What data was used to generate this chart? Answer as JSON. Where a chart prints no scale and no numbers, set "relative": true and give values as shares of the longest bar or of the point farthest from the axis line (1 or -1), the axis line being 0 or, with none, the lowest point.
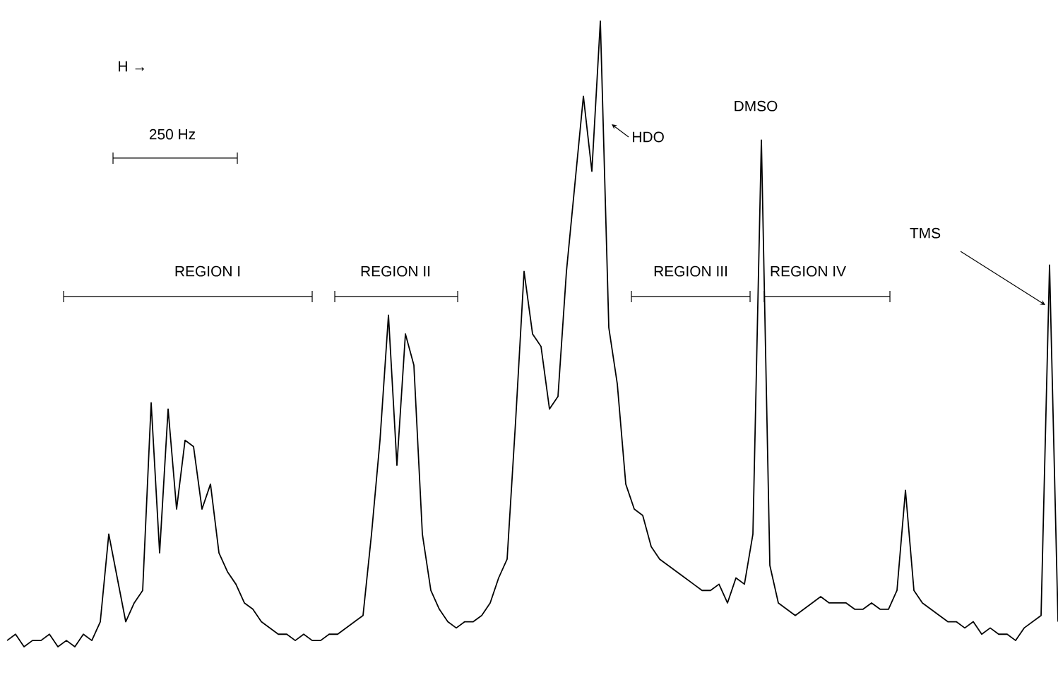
{
  "chart_data": {
    "type": "line",
    "relative": true,
    "color": "#000000",
    "categories": [
      null,
      null,
      null,
      null,
      null,
      null,
      null,
      null,
      null,
      null,
      null,
      null,
      null,
      null,
      null,
      null,
      null,
      null,
      null,
      null,
      null,
      null,
      null,
      null,
      null,
      null,
      null,
      null,
      null,
      null,
      null,
      null,
      null,
      null,
      null,
      null,
      null,
      null,
      null,
      null,
      null,
      null,
      null,
      null,
      null,
      null,
      null,
      null,
      null,
      null,
      null,
      null,
      null,
      null,
      null,
      null,
      null,
      null,
      null,
      null,
      null,
      null,
      null,
      null,
      null,
      null,
      null,
      null,
      null,
      null,
      null,
      null,
      null,
      null,
      null,
      null,
      null,
      null,
      null,
      null,
      null,
      null,
      null,
      null,
      null,
      null,
      null,
      null,
      null,
      null,
      null,
      null,
      null,
      null,
      null,
      null,
      null,
      null,
      null,
      null,
      null,
      null,
      null,
      null,
      null,
      null,
      null,
      null,
      null,
      null,
      null,
      null,
      null,
      null,
      null,
      null,
      null,
      null,
      null,
      null,
      null,
      null,
      null,
      null,
      null
    ],
    "values": [
      0.01,
      0.02,
      0,
      0.01,
      0.01,
      0.02,
      0,
      0.01,
      0,
      0.02,
      0.01,
      0.04,
      0.18,
      0.11,
      0.04,
      0.07,
      0.09,
      0.39,
      0.15,
      0.38,
      0.22,
      0.33,
      0.32,
      0.22,
      0.26,
      0.15,
      0.12,
      0.1,
      0.07,
      0.06,
      0.04,
      0.03,
      0.02,
      0.02,
      0.01,
      0.02,
      0.01,
      0.01,
      0.02,
      0.02,
      0.03,
      0.04,
      0.05,
      0.18,
      0.33,
      0.53,
      0.29,
      0.5,
      0.45,
      0.18,
      0.09,
      0.06,
      0.04,
      0.03,
      0.04,
      0.04,
      0.05,
      0.07,
      0.11,
      0.14,
      0.36,
      0.6,
      0.5,
      0.48,
      0.38,
      0.4,
      0.6,
      0.74,
      0.88,
      0.76,
      1,
      0.51,
      0.42,
      0.26,
      0.22,
      0.21,
      0.16,
      0.14,
      0.13,
      0.12,
      0.11,
      0.1,
      0.09,
      0.09,
      0.1,
      0.07,
      0.11,
      0.1,
      0.18,
      0.81,
      0.13,
      0.07,
      0.06,
      0.05,
      0.06,
      0.07,
      0.08,
      0.07,
      0.07,
      0.07,
      0.06,
      0.06,
      0.07,
      0.06,
      0.06,
      0.09,
      0.25,
      0.09,
      0.07,
      0.06,
      0.05,
      0.04,
      0.04,
      0.03,
      0.04,
      0.02,
      0.03,
      0.02,
      0.02,
      0.01,
      0.03,
      0.04,
      0.05,
      0.61,
      0.04
    ],
    "annotations": [
      "H →",
      "250 Hz",
      "REGION I",
      "REGION II",
      "REGION III",
      "REGION IV",
      "HDO",
      "DMSO",
      "TMS"
    ]
  }
}
